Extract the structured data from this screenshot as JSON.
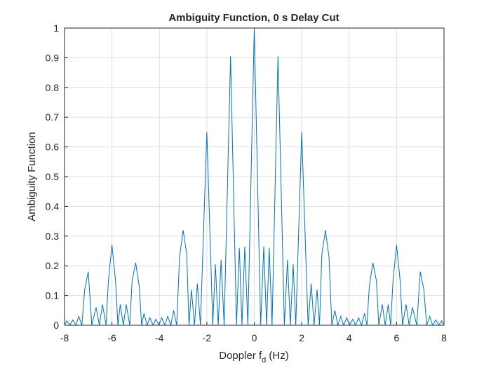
{
  "chart_data": {
    "type": "line",
    "title": "Ambiguity Function, 0 s Delay Cut",
    "xlabel": [
      "Doppler f",
      "d",
      " (Hz)"
    ],
    "ylabel": "Ambiguity Function",
    "color": "#0072bd",
    "grid": true,
    "xlim": [
      -8,
      8
    ],
    "xticks": [
      -8,
      -6,
      -4,
      -2,
      0,
      2,
      4,
      6,
      8
    ],
    "ylim": [
      0,
      1
    ],
    "yticks": [
      0,
      0.1,
      0.2,
      0.3,
      0.4,
      0.5,
      0.6,
      0.7,
      0.8,
      0.9,
      1
    ],
    "x": [
      -8,
      -7.9,
      -7.78,
      -7.65,
      -7.52,
      -7.4,
      -7.27,
      -7.15,
      -7,
      -6.85,
      -6.67,
      -6.53,
      -6.4,
      -6.25,
      -6.15,
      -6,
      -5.85,
      -5.75,
      -5.65,
      -5.52,
      -5.4,
      -5.25,
      -5.15,
      -5,
      -4.85,
      -4.75,
      -4.65,
      -4.52,
      -4.4,
      -4.27,
      -4.15,
      -4.02,
      -3.9,
      -3.77,
      -3.65,
      -3.52,
      -3.4,
      -3.27,
      -3.15,
      -3,
      -2.85,
      -2.75,
      -2.65,
      -2.52,
      -2.4,
      -2.27,
      -2,
      -1.75,
      -1.64,
      -1.52,
      -1.4,
      -1.27,
      -1,
      -0.75,
      -0.63,
      -0.52,
      -0.4,
      -0.27,
      0,
      0.27,
      0.4,
      0.52,
      0.63,
      0.75,
      1,
      1.27,
      1.4,
      1.52,
      1.64,
      1.75,
      2,
      2.27,
      2.4,
      2.52,
      2.65,
      2.75,
      2.85,
      3,
      3.15,
      3.27,
      3.4,
      3.52,
      3.65,
      3.77,
      3.9,
      4.02,
      4.15,
      4.27,
      4.4,
      4.52,
      4.65,
      4.75,
      4.85,
      5,
      5.15,
      5.25,
      5.4,
      5.52,
      5.65,
      5.75,
      5.85,
      6,
      6.15,
      6.25,
      6.4,
      6.53,
      6.67,
      6.85,
      7,
      7.15,
      7.27,
      7.4,
      7.52,
      7.65,
      7.78,
      7.9,
      8
    ],
    "values": [
      0,
      0.015,
      0,
      0.018,
      0,
      0.03,
      0,
      0.12,
      0.18,
      0,
      0.06,
      0,
      0.07,
      0,
      0.15,
      0.27,
      0.15,
      0,
      0.07,
      0,
      0.07,
      0,
      0.15,
      0.21,
      0.13,
      0,
      0.04,
      0,
      0.025,
      0,
      0.02,
      0,
      0.025,
      0,
      0.03,
      0,
      0.05,
      0,
      0.23,
      0.32,
      0.24,
      0,
      0.12,
      0,
      0.14,
      0,
      0.65,
      0,
      0.205,
      0,
      0.22,
      0,
      0.905,
      0,
      0.26,
      0,
      0.265,
      0,
      1,
      0,
      0.265,
      0,
      0.26,
      0,
      0.905,
      0,
      0.22,
      0,
      0.205,
      0,
      0.65,
      0,
      0.14,
      0,
      0.12,
      0,
      0.24,
      0.32,
      0.23,
      0,
      0.05,
      0,
      0.03,
      0,
      0.025,
      0,
      0.02,
      0,
      0.025,
      0,
      0.04,
      0,
      0.13,
      0.21,
      0.15,
      0,
      0.07,
      0,
      0.07,
      0,
      0.15,
      0.27,
      0.15,
      0,
      0.07,
      0,
      0.06,
      0,
      0.18,
      0.12,
      0,
      0.03,
      0,
      0.018,
      0,
      0.015,
      0
    ]
  }
}
